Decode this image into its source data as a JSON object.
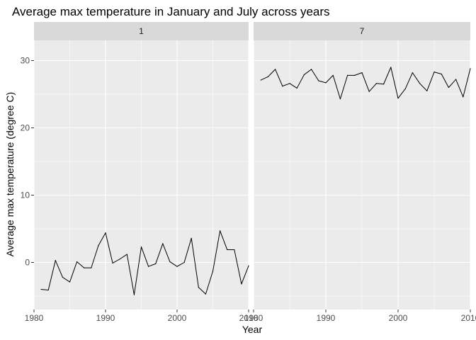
{
  "chart_data": {
    "type": "line",
    "title": "Average max temperature in January and July across years",
    "xlabel": "Year",
    "ylabel": "Average max temperature (degree C)",
    "xlim": [
      1980,
      2010
    ],
    "ylim": [
      -7,
      33
    ],
    "x_ticks": [
      1980,
      1990,
      2000,
      2010
    ],
    "x_tick_labels": [
      "1980",
      "1990",
      "2000",
      "2010"
    ],
    "y_ticks": [
      0,
      10,
      20,
      30
    ],
    "y_tick_labels": [
      "0",
      "10",
      "20",
      "30"
    ],
    "grid": true,
    "facets": [
      {
        "label": "1",
        "x": [
          1981,
          1982,
          1983,
          1984,
          1985,
          1986,
          1987,
          1988,
          1989,
          1990,
          1991,
          1992,
          1993,
          1994,
          1995,
          1996,
          1997,
          1998,
          1999,
          2000,
          2001,
          2002,
          2003,
          2004,
          2005,
          2006,
          2007,
          2008,
          2009,
          2010
        ],
        "values": [
          -4.0,
          -4.1,
          0.3,
          -2.2,
          -2.9,
          0.1,
          -0.8,
          -0.8,
          2.5,
          4.4,
          -0.1,
          0.5,
          1.2,
          -4.8,
          2.3,
          -0.6,
          -0.2,
          2.8,
          0.1,
          -0.6,
          0.0,
          3.6,
          -3.7,
          -4.7,
          -1.3,
          4.7,
          1.9,
          1.9,
          -3.2,
          -0.5
        ]
      },
      {
        "label": "7",
        "x": [
          1981,
          1982,
          1983,
          1984,
          1985,
          1986,
          1987,
          1988,
          1989,
          1990,
          1991,
          1992,
          1993,
          1994,
          1995,
          1996,
          1997,
          1998,
          1999,
          2000,
          2001,
          2002,
          2003,
          2004,
          2005,
          2006,
          2007,
          2008,
          2009,
          2010
        ],
        "values": [
          27.1,
          27.6,
          28.7,
          26.2,
          26.6,
          25.9,
          27.9,
          28.7,
          27.0,
          26.7,
          27.8,
          24.3,
          27.8,
          27.8,
          28.2,
          25.4,
          26.6,
          26.5,
          29.0,
          24.4,
          25.8,
          28.2,
          26.6,
          25.5,
          28.3,
          28.0,
          26.0,
          27.2,
          24.6,
          28.8
        ]
      }
    ],
    "colors": {
      "panel_background": "#ebebeb",
      "strip_background": "#d9d9d9",
      "grid_major": "#ffffff",
      "line": "#000000"
    }
  }
}
